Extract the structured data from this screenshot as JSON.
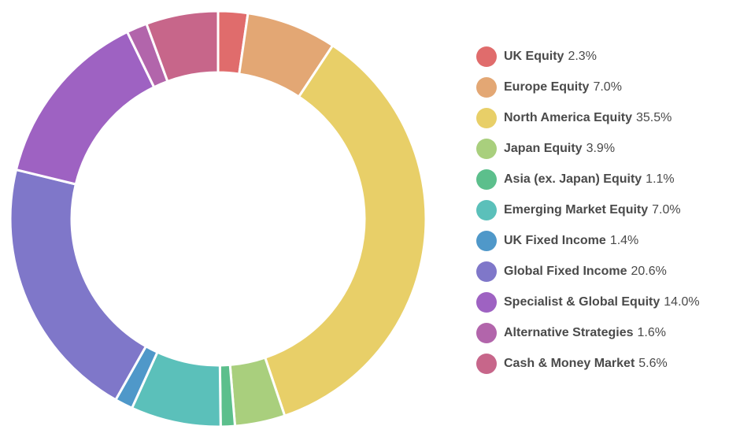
{
  "chart_data": {
    "type": "pie",
    "variant": "donut",
    "start_angle_deg": 0,
    "direction": "clockwise",
    "legend_position": "right",
    "categories": [
      "UK Equity",
      "Europe Equity",
      "North America Equity",
      "Japan Equity",
      "Asia (ex. Japan) Equity",
      "Emerging Market Equity",
      "UK Fixed Income",
      "Global Fixed Income",
      "Specialist & Global Equity",
      "Alternative Strategies",
      "Cash & Money Market"
    ],
    "values": [
      2.3,
      7.0,
      35.5,
      3.9,
      1.1,
      7.0,
      1.4,
      20.6,
      14.0,
      1.6,
      5.6
    ],
    "value_labels": [
      "2.3%",
      "7.0%",
      "35.5%",
      "3.9%",
      "1.1%",
      "7.0%",
      "1.4%",
      "20.6%",
      "14.0%",
      "1.6%",
      "5.6%"
    ],
    "colors": [
      "#e06c6c",
      "#e3a774",
      "#e8cf68",
      "#a9cf7d",
      "#5cbf8c",
      "#5bc0ba",
      "#4f98c9",
      "#7f77c9",
      "#9e62c2",
      "#b265ab",
      "#c7668a"
    ]
  }
}
